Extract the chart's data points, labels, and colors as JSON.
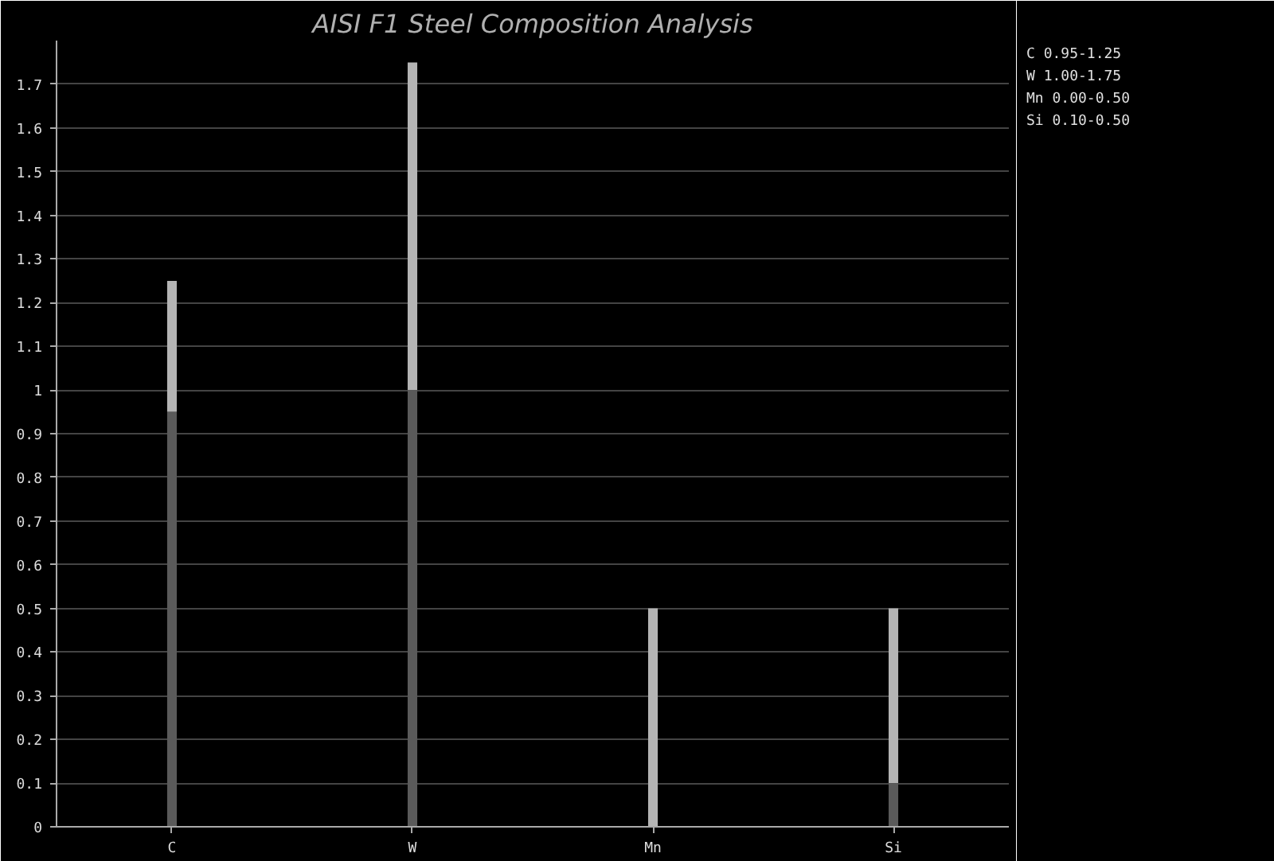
{
  "chart_data": {
    "type": "bar",
    "title": "AISI F1 Steel Composition Analysis",
    "categories": [
      "C",
      "W",
      "Mn",
      "Si"
    ],
    "stacked": true,
    "series": [
      {
        "color": "#5a5a5a",
        "values": [
          0.95,
          1.0,
          0.0,
          0.1
        ]
      },
      {
        "color": "#b4b4b4",
        "values": [
          0.3,
          0.75,
          0.5,
          0.4
        ]
      }
    ],
    "ylim": [
      0,
      1.8
    ],
    "yticks": [
      0,
      0.1,
      0.2,
      0.3,
      0.4,
      0.5,
      0.6,
      0.7,
      0.8,
      0.9,
      {
        "value": 1,
        "label": "1"
      },
      1.1,
      1.2,
      1.3,
      1.4,
      1.5,
      1.6,
      1.7
    ],
    "grid": "y",
    "annotations": [
      "C  0.95-1.25",
      "W  1.00-1.75",
      "Mn 0.00-0.50",
      "Si 0.10-0.50"
    ]
  }
}
